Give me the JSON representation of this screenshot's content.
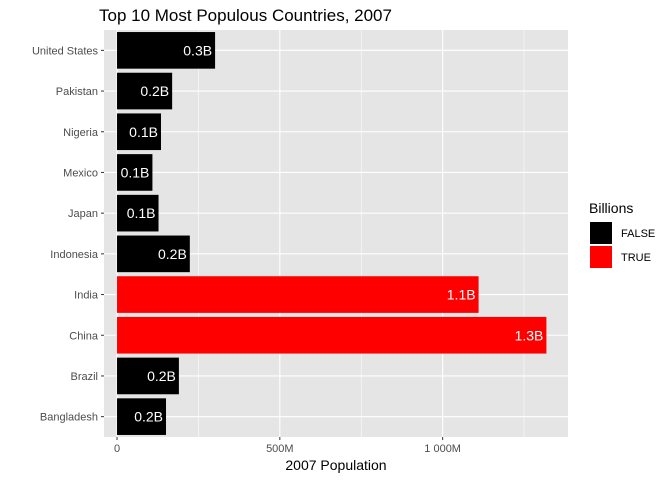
{
  "chart_data": {
    "type": "bar",
    "orientation": "horizontal",
    "title": "Top 10 Most Populous Countries, 2007",
    "xlabel": "2007 Population",
    "ylabel": "",
    "categories": [
      "Bangladesh",
      "Brazil",
      "China",
      "India",
      "Indonesia",
      "Japan",
      "Mexico",
      "Nigeria",
      "Pakistan",
      "United States"
    ],
    "values": [
      150448339,
      190010647,
      1318683096,
      1110396331,
      223547000,
      127467972,
      108700891,
      135031164,
      169270617,
      301139947
    ],
    "bar_labels": [
      "0.2B",
      "0.2B",
      "1.3B",
      "1.1B",
      "0.2B",
      "0.1B",
      "0.1B",
      "0.1B",
      "0.2B",
      "0.3B"
    ],
    "fill_group": [
      false,
      false,
      true,
      true,
      false,
      false,
      false,
      false,
      false,
      false
    ],
    "xlim": [
      -40000000,
      1385000000
    ],
    "xticks": [
      0,
      500000000,
      1000000000
    ],
    "xtick_labels": [
      "0",
      "500M",
      "1 000M"
    ],
    "grid": true,
    "legend": {
      "title": "Billions",
      "position": "right",
      "entries": [
        {
          "label": "FALSE",
          "color": "#000000"
        },
        {
          "label": "TRUE",
          "color": "#ff0000"
        }
      ]
    },
    "colors": {
      "panel": "#e5e5e5",
      "grid": "#ffffff",
      "false": "#000000",
      "true": "#ff0000"
    }
  }
}
